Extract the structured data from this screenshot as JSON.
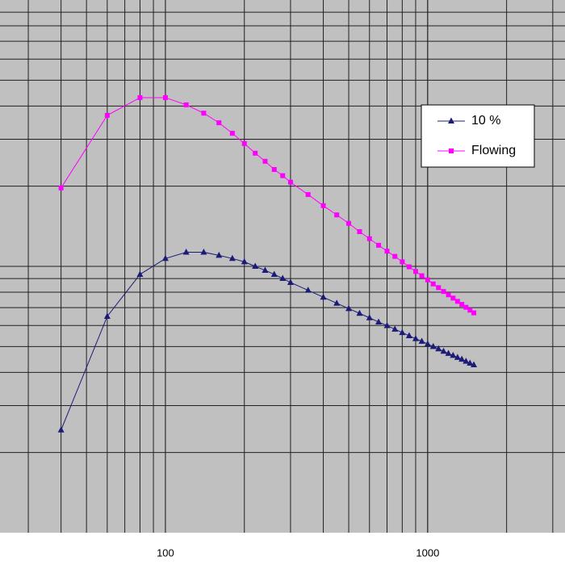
{
  "chart_data": {
    "type": "line",
    "log_x": true,
    "log_y": true,
    "grid": true,
    "minor_grid": true,
    "legend": "upper right",
    "xlim": [
      23.4,
      3340
    ],
    "ylim": [
      1,
      100
    ],
    "xticks": [
      100,
      1000
    ],
    "x": [
      40,
      60,
      80,
      100,
      120,
      140,
      160,
      180,
      200,
      220,
      240,
      260,
      280,
      300,
      350,
      400,
      450,
      500,
      550,
      600,
      650,
      700,
      750,
      800,
      850,
      900,
      950,
      1000,
      1050,
      1100,
      1150,
      1200,
      1250,
      1300,
      1350,
      1400,
      1450,
      1500
    ],
    "series": [
      {
        "name": "10 %",
        "color": "#1c1c78",
        "marker": "triangle",
        "values": [
          2.43,
          6.49,
          9.33,
          10.7,
          11.3,
          11.3,
          11.0,
          10.7,
          10.4,
          10.0,
          9.66,
          9.33,
          9.01,
          8.7,
          8.13,
          7.66,
          7.27,
          6.94,
          6.66,
          6.41,
          6.18,
          5.99,
          5.81,
          5.64,
          5.49,
          5.35,
          5.23,
          5.11,
          5.0,
          4.9,
          4.8,
          4.71,
          4.63,
          4.55,
          4.48,
          4.4,
          4.33,
          4.27
        ]
      },
      {
        "name": "Flowing",
        "color": "#ff00ff",
        "marker": "square",
        "values": [
          19.7,
          36.9,
          43.0,
          43.0,
          40.4,
          37.6,
          34.6,
          31.6,
          28.9,
          26.6,
          24.8,
          23.1,
          21.9,
          20.7,
          18.6,
          16.9,
          15.6,
          14.5,
          13.5,
          12.7,
          12.0,
          11.4,
          10.9,
          10.4,
          9.96,
          9.57,
          9.22,
          8.9,
          8.59,
          8.32,
          8.05,
          7.82,
          7.6,
          7.39,
          7.2,
          7.02,
          6.85,
          6.69
        ]
      }
    ]
  }
}
